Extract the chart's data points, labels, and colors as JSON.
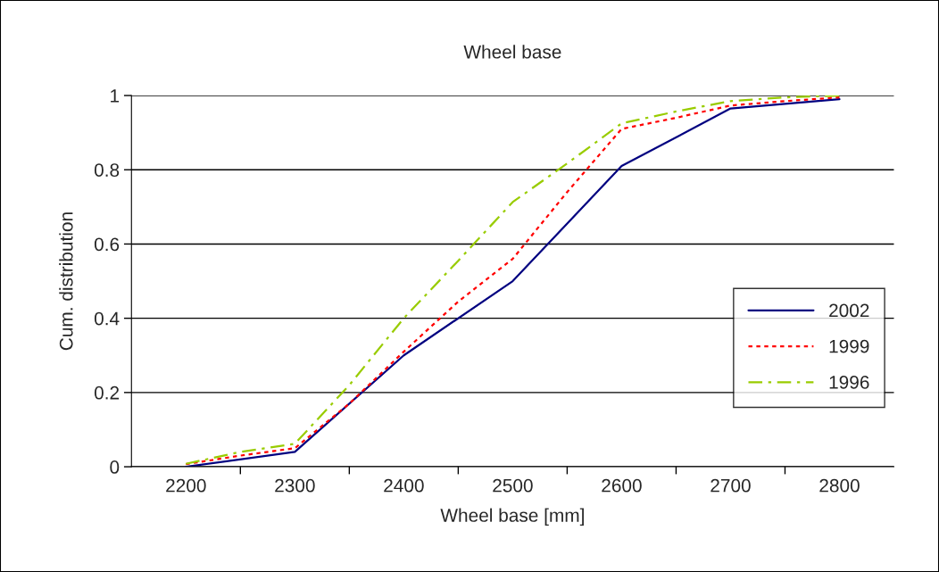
{
  "chart_data": {
    "type": "line",
    "title": "Wheel base",
    "xlabel": "Wheel base [mm]",
    "ylabel": "Cum. distribution",
    "xlim": [
      2150,
      2850
    ],
    "xticks": [
      2200,
      {
        "value": 2250,
        "label": null
      },
      2300,
      {
        "value": 2350,
        "label": null
      },
      2400,
      {
        "value": 2450,
        "label": null
      },
      2500,
      {
        "value": 2550,
        "label": null
      },
      2600,
      {
        "value": 2650,
        "label": null
      },
      2700,
      {
        "value": 2750,
        "label": null
      },
      2800
    ],
    "ylim": [
      0,
      1
    ],
    "yticks": [
      0,
      0.2,
      0.4,
      0.6,
      0.8,
      1
    ],
    "grid": "y",
    "legend": "right",
    "marker": "none",
    "series": [
      {
        "name": "2002",
        "color": "#000080",
        "line_style": "solid",
        "x": [
          2200,
          2300,
          2400,
          2500,
          2600,
          2700,
          2800
        ],
        "values": [
          0.0,
          0.04,
          0.3,
          0.5,
          0.81,
          0.965,
          0.99
        ]
      },
      {
        "name": "1999",
        "color": "#ff0000",
        "line_style": "dotted",
        "x": [
          2200,
          2250,
          2300,
          2350,
          2400,
          2450,
          2500,
          2550,
          2600,
          2650,
          2700,
          2750,
          2800
        ],
        "values": [
          0.007,
          0.03,
          0.05,
          0.17,
          0.31,
          0.445,
          0.56,
          0.74,
          0.91,
          0.94,
          0.973,
          0.985,
          0.995
        ]
      },
      {
        "name": "1996",
        "color": "#99cc00",
        "line_style": "dashdot",
        "x": [
          2200,
          2250,
          2300,
          2350,
          2400,
          2450,
          2500,
          2550,
          2600,
          2650,
          2700,
          2750,
          2800
        ],
        "values": [
          0.008,
          0.04,
          0.062,
          0.22,
          0.4,
          0.555,
          0.713,
          0.817,
          0.925,
          0.957,
          0.985,
          0.995,
          1.0
        ]
      }
    ]
  }
}
